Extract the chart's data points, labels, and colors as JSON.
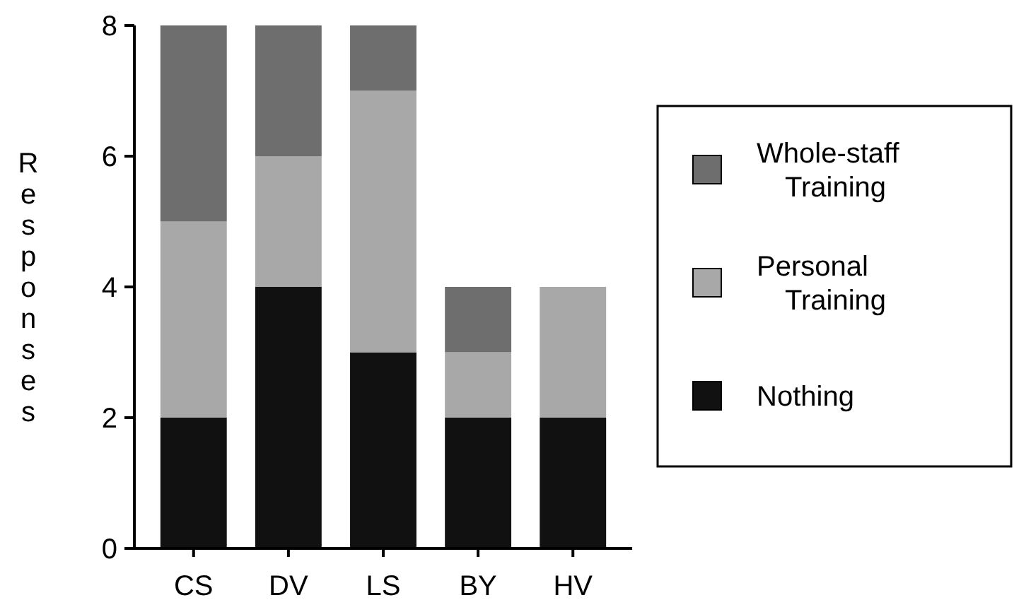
{
  "chart_data": {
    "type": "bar",
    "stacked": true,
    "ylabel": "Responses",
    "categories": [
      "CS",
      "DV",
      "LS",
      "BY",
      "HV"
    ],
    "series": [
      {
        "name": "Nothing",
        "color": "#111111",
        "values": [
          2,
          4,
          3,
          2,
          2
        ]
      },
      {
        "name": "Personal Training",
        "color": "#a8a8a8",
        "values": [
          3,
          2,
          4,
          1,
          2
        ]
      },
      {
        "name": "Whole-staff Training",
        "color": "#6e6e6e",
        "values": [
          3,
          2,
          1,
          1,
          0
        ]
      }
    ],
    "ylim": [
      0,
      8
    ],
    "yticks": [
      0,
      2,
      4,
      6,
      8
    ],
    "legend": "right"
  }
}
